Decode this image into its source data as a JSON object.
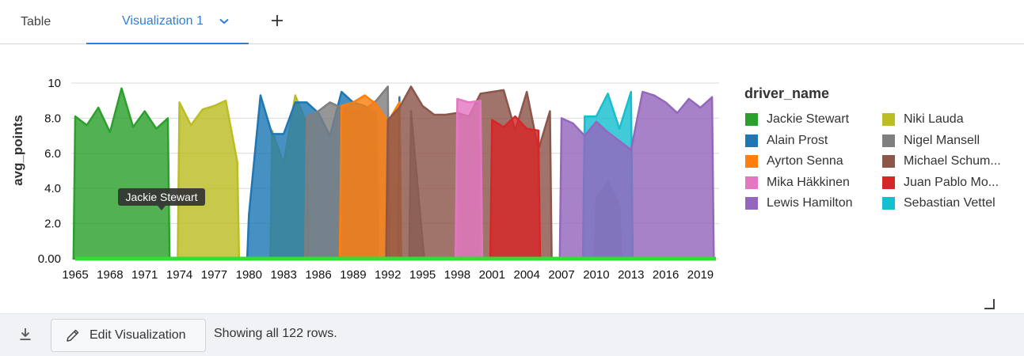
{
  "tabs": {
    "table_label": "Table",
    "vis_label": "Visualization 1",
    "add_label": "+"
  },
  "chart_data": {
    "type": "area",
    "xlabel": "",
    "ylabel": "avg_points",
    "ylim": [
      0,
      10
    ],
    "y_ticks": [
      "0.00",
      "2.0",
      "4.0",
      "6.0",
      "8.0",
      "10"
    ],
    "x_ticks": [
      "1965",
      "1968",
      "1971",
      "1974",
      "1977",
      "1980",
      "1983",
      "1986",
      "1989",
      "1992",
      "1995",
      "1998",
      "2001",
      "2004",
      "2007",
      "2010",
      "2013",
      "2016",
      "2019"
    ],
    "grid": true,
    "legend_title": "driver_name",
    "legend_position": "right",
    "tooltip": "Jackie Stewart",
    "series": [
      {
        "name": "Jackie Stewart",
        "color": "#2ca02c",
        "x": [
          1965,
          1966,
          1967,
          1968,
          1969,
          1970,
          1971,
          1972,
          1973
        ],
        "y": [
          8.1,
          7.6,
          8.6,
          7.2,
          9.7,
          7.5,
          8.4,
          7.4,
          8.0
        ]
      },
      {
        "name": "Niki Lauda",
        "color": "#bcbd22",
        "x": [
          1974,
          1975,
          1976,
          1977,
          1978,
          1979,
          1982,
          1983,
          1984,
          1985
        ],
        "y": [
          8.9,
          7.6,
          8.5,
          8.7,
          9.0,
          5.5,
          7.3,
          5.4,
          9.3,
          7.7
        ]
      },
      {
        "name": "Alain Prost",
        "color": "#1f77b4",
        "x": [
          1980,
          1981,
          1982,
          1983,
          1984,
          1985,
          1986,
          1987,
          1988,
          1989,
          1990,
          1991,
          1993
        ],
        "y": [
          2.5,
          9.3,
          7.1,
          7.1,
          8.9,
          8.9,
          8.3,
          7.0,
          9.5,
          8.9,
          8.7,
          8.2,
          9.2
        ]
      },
      {
        "name": "Nigel Mansell",
        "color": "#7f7f7f",
        "x": [
          1985,
          1986,
          1987,
          1988,
          1989,
          1990,
          1991,
          1992,
          1994,
          1995
        ],
        "y": [
          8.1,
          8.4,
          8.9,
          8.6,
          8.5,
          8.5,
          9.0,
          9.8,
          8.4,
          1.0
        ]
      },
      {
        "name": "Ayrton Senna",
        "color": "#ff7f0e",
        "x": [
          1988,
          1989,
          1990,
          1991,
          1992,
          1993
        ],
        "y": [
          8.7,
          8.9,
          9.3,
          8.8,
          7.8,
          8.9
        ]
      },
      {
        "name": "Michael Schumacher",
        "color": "#8c564b",
        "x": [
          1992,
          1993,
          1994,
          1995,
          1996,
          1997,
          1998,
          1999,
          2000,
          2001,
          2002,
          2003,
          2004,
          2005,
          2006,
          2010,
          2011,
          2012
        ],
        "y": [
          7.9,
          8.6,
          9.8,
          8.7,
          8.2,
          8.2,
          8.3,
          8.1,
          9.4,
          9.5,
          9.6,
          7.3,
          9.5,
          6.2,
          8.4,
          3.4,
          4.4,
          3.0
        ]
      },
      {
        "name": "Mika Häkkinen",
        "color": "#e377c2",
        "x": [
          1998,
          1999,
          2000
        ],
        "y": [
          9.1,
          8.9,
          9.0
        ]
      },
      {
        "name": "Juan Pablo Montoya",
        "color": "#d62728",
        "x": [
          2001,
          2002,
          2003,
          2004,
          2005
        ],
        "y": [
          7.9,
          7.5,
          8.1,
          7.4,
          7.3
        ]
      },
      {
        "name": "Sebastian Vettel",
        "color": "#17becf",
        "x": [
          2009,
          2010,
          2011,
          2012,
          2013
        ],
        "y": [
          8.1,
          8.1,
          9.4,
          7.4,
          9.5
        ]
      },
      {
        "name": "Lewis Hamilton",
        "color": "#9467bd",
        "x": [
          2007,
          2008,
          2009,
          2010,
          2011,
          2012,
          2013,
          2014,
          2015,
          2016,
          2017,
          2018,
          2019,
          2020
        ],
        "y": [
          8.0,
          7.7,
          7.0,
          7.8,
          7.2,
          6.7,
          6.2,
          9.5,
          9.3,
          8.9,
          8.3,
          9.1,
          8.6,
          9.2
        ]
      }
    ]
  },
  "legend": {
    "title": "driver_name",
    "items": [
      {
        "label": "Jackie Stewart",
        "color": "#2ca02c"
      },
      {
        "label": "Niki Lauda",
        "color": "#bcbd22"
      },
      {
        "label": "Alain Prost",
        "color": "#1f77b4"
      },
      {
        "label": "Nigel Mansell",
        "color": "#7f7f7f"
      },
      {
        "label": "Ayrton Senna",
        "color": "#ff7f0e"
      },
      {
        "label": "Michael Schum...",
        "color": "#8c564b"
      },
      {
        "label": "Mika Häkkinen",
        "color": "#e377c2"
      },
      {
        "label": "Juan Pablo Mo...",
        "color": "#d62728"
      },
      {
        "label": "Lewis Hamilton",
        "color": "#9467bd"
      },
      {
        "label": "Sebastian Vettel",
        "color": "#17becf"
      }
    ]
  },
  "footer": {
    "edit_label": "Edit Visualization",
    "rows_text": "Showing all 122 rows."
  }
}
